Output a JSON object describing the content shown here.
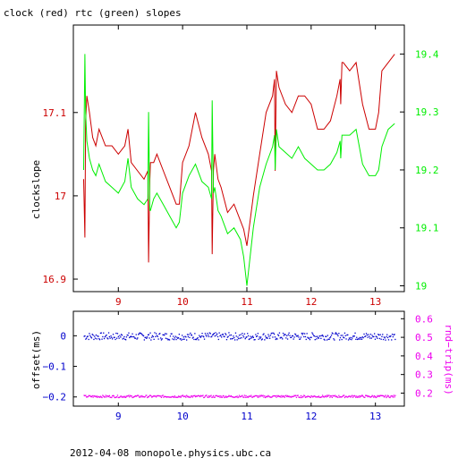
{
  "title": "clock (red) rtc (green) slopes",
  "footer": "2012-04-08  monopole.physics.ubc.ca",
  "colors": {
    "red": "#cc0000",
    "green": "#00ee00",
    "blue": "#0000cc",
    "magenta": "#ee00ee",
    "axis": "#000000"
  },
  "chart_data": [
    {
      "type": "line",
      "ylabel": "clockslope",
      "ylabel_right": "",
      "x_ticks": [
        "9",
        "10",
        "11",
        "12",
        "13"
      ],
      "xlim": [
        8.3,
        13.45
      ],
      "ylim_left": [
        16.885,
        17.205
      ],
      "ylim_right": [
        18.99,
        19.45
      ],
      "y_ticks_left": [
        "16.9",
        "17",
        "17.1"
      ],
      "y_ticks_right": [
        "19",
        "19.1",
        "19.2",
        "19.3",
        "19.4"
      ],
      "series": [
        {
          "name": "clock",
          "axis": "left",
          "color": "red",
          "x": [
            8.46,
            8.48,
            8.49,
            8.51,
            8.55,
            8.6,
            8.65,
            8.7,
            8.8,
            8.9,
            9.0,
            9.1,
            9.15,
            9.2,
            9.3,
            9.4,
            9.46,
            9.47,
            9.49,
            9.5,
            9.55,
            9.6,
            9.7,
            9.8,
            9.9,
            9.95,
            10.0,
            10.1,
            10.2,
            10.3,
            10.4,
            10.45,
            10.46,
            10.48,
            10.5,
            10.55,
            10.6,
            10.7,
            10.8,
            10.9,
            10.95,
            11.0,
            11.05,
            11.1,
            11.2,
            11.3,
            11.4,
            11.43,
            11.44,
            11.46,
            11.5,
            11.6,
            11.7,
            11.8,
            11.9,
            12.0,
            12.1,
            12.2,
            12.3,
            12.4,
            12.45,
            12.46,
            12.48,
            12.5,
            12.6,
            12.7,
            12.8,
            12.9,
            13.0,
            13.05,
            13.1,
            13.2,
            13.3
          ],
          "values": [
            17.02,
            16.95,
            17.09,
            17.12,
            17.1,
            17.07,
            17.06,
            17.08,
            17.06,
            17.06,
            17.05,
            17.06,
            17.08,
            17.04,
            17.03,
            17.02,
            17.03,
            16.92,
            17.02,
            17.04,
            17.04,
            17.05,
            17.03,
            17.01,
            16.99,
            16.99,
            17.04,
            17.06,
            17.1,
            17.07,
            17.05,
            17.03,
            16.93,
            17.03,
            17.05,
            17.02,
            17.01,
            16.98,
            16.99,
            16.97,
            16.96,
            16.94,
            16.97,
            17.0,
            17.05,
            17.1,
            17.12,
            17.14,
            17.03,
            17.15,
            17.13,
            17.11,
            17.1,
            17.12,
            17.12,
            17.11,
            17.08,
            17.08,
            17.09,
            17.12,
            17.14,
            17.11,
            17.16,
            17.16,
            17.15,
            17.16,
            17.11,
            17.08,
            17.08,
            17.1,
            17.15,
            17.16,
            17.17
          ]
        },
        {
          "name": "rtc",
          "axis": "right",
          "color": "green",
          "x": [
            8.46,
            8.48,
            8.49,
            8.51,
            8.55,
            8.6,
            8.65,
            8.7,
            8.8,
            8.9,
            9.0,
            9.1,
            9.15,
            9.2,
            9.3,
            9.4,
            9.46,
            9.47,
            9.49,
            9.5,
            9.55,
            9.6,
            9.7,
            9.8,
            9.9,
            9.95,
            10.0,
            10.1,
            10.2,
            10.3,
            10.4,
            10.45,
            10.46,
            10.48,
            10.5,
            10.55,
            10.6,
            10.7,
            10.8,
            10.9,
            10.95,
            11.0,
            11.05,
            11.1,
            11.2,
            11.3,
            11.4,
            11.43,
            11.44,
            11.46,
            11.5,
            11.6,
            11.7,
            11.8,
            11.9,
            12.0,
            12.1,
            12.2,
            12.3,
            12.4,
            12.45,
            12.46,
            12.48,
            12.5,
            12.6,
            12.7,
            12.8,
            12.9,
            13.0,
            13.05,
            13.1,
            13.2,
            13.3
          ],
          "values": [
            19.2,
            19.4,
            19.3,
            19.25,
            19.22,
            19.2,
            19.19,
            19.21,
            19.18,
            19.17,
            19.16,
            19.18,
            19.22,
            19.17,
            19.15,
            19.14,
            19.15,
            19.3,
            19.13,
            19.13,
            19.15,
            19.16,
            19.14,
            19.12,
            19.1,
            19.11,
            19.16,
            19.19,
            19.21,
            19.18,
            19.17,
            19.15,
            19.32,
            19.16,
            19.17,
            19.13,
            19.12,
            19.09,
            19.1,
            19.08,
            19.05,
            19.0,
            19.05,
            19.1,
            19.17,
            19.21,
            19.24,
            19.26,
            19.2,
            19.27,
            19.24,
            19.23,
            19.22,
            19.24,
            19.22,
            19.21,
            19.2,
            19.2,
            19.21,
            19.23,
            19.25,
            19.22,
            19.26,
            19.26,
            19.26,
            19.27,
            19.21,
            19.19,
            19.19,
            19.2,
            19.24,
            19.27,
            19.28
          ]
        }
      ]
    },
    {
      "type": "scatter",
      "ylabel": "offset(ms)",
      "ylabel_right": "rnd−trip(ms)",
      "x_ticks": [
        "9",
        "10",
        "11",
        "12",
        "13"
      ],
      "xlim": [
        8.3,
        13.45
      ],
      "ylim_left": [
        -0.23,
        0.08
      ],
      "ylim_right": [
        0.13,
        0.64
      ],
      "y_ticks_left": [
        "−0.2",
        "−0.1",
        "0"
      ],
      "y_ticks_right": [
        "0.2",
        "0.3",
        "0.4",
        "0.5",
        "0.6"
      ],
      "series": [
        {
          "name": "offset",
          "axis": "left",
          "color": "blue",
          "xrange": [
            8.46,
            13.3
          ],
          "center": 0.0,
          "spread": 0.012
        },
        {
          "name": "rnd-trip",
          "axis": "right",
          "color": "magenta",
          "xrange": [
            8.46,
            13.3
          ],
          "center": 0.185,
          "spread": 0.006
        }
      ]
    }
  ]
}
